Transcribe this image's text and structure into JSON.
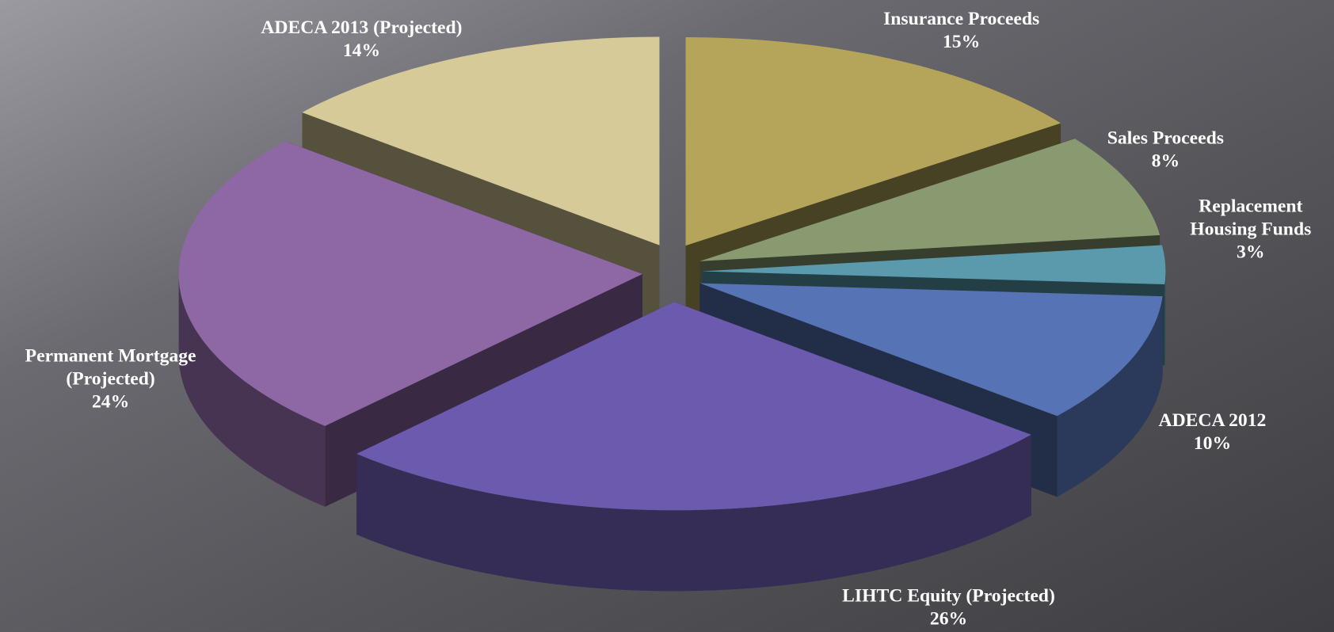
{
  "chart_data": {
    "type": "pie3d",
    "categories": [
      "Insurance Proceeds",
      "Sales Proceeds",
      "Replacement Housing Funds",
      "ADECA 2012",
      "LIHTC Equity (Projected)",
      "Permanent Mortgage (Projected)",
      "ADECA 2013 (Projected)"
    ],
    "values": [
      15,
      8,
      3,
      10,
      26,
      24,
      14
    ],
    "value_labels": [
      "15%",
      "8%",
      "3%",
      "10%",
      "26%",
      "24%",
      "14%"
    ],
    "colors": [
      "#b5a55a",
      "#8a9a70",
      "#5b9aad",
      "#5573b5",
      "#6c5aae",
      "#8e67a5",
      "#d6ca98"
    ]
  }
}
